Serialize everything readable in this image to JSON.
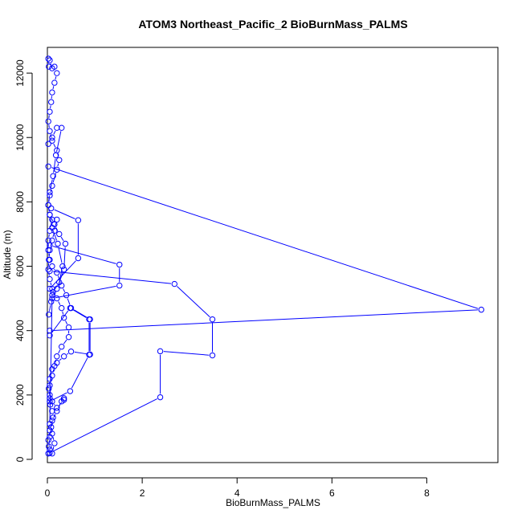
{
  "chart_data": {
    "type": "line",
    "title": "ATOM3 Northeast_Pacific_2 BioBurnMass_PALMS",
    "xlabel": "BioBurnMass_PALMS",
    "ylabel": "Altitude (m)",
    "xlim": [
      0,
      9.5
    ],
    "ylim": [
      -100,
      12800
    ],
    "xticks": [
      0,
      2,
      4,
      6,
      8
    ],
    "yticks": [
      0,
      2000,
      4000,
      6000,
      8000,
      10000,
      12000
    ],
    "grid": false,
    "legend": "none",
    "color": "#0000ff",
    "series": [
      {
        "x": [
          0.02,
          0.03,
          0.05,
          0.08,
          0.12,
          0.1,
          0.06,
          0.05,
          0.03,
          0.05,
          0.1,
          0.2,
          0.35,
          0.5,
          0.9,
          0.9,
          0.5,
          0.4,
          0.3,
          0.2,
          0.1,
          0.05,
          0.02,
          0.02,
          0.05,
          0.1,
          0.2,
          0.15,
          0.1,
          0.05,
          0.03,
          0.02,
          0.05,
          0.1,
          0.2,
          0.3,
          0.35,
          0.45,
          0.45,
          0.3,
          0.2,
          0.15,
          0.1,
          0.05,
          0.05,
          0.1,
          0.2,
          0.35,
          0.35,
          0.3,
          0.2,
          0.1,
          0.05,
          0.02,
          0.05,
          0.1,
          0.15,
          0.1,
          0.05,
          0.1,
          0.2,
          0.35,
          0.38,
          0.25,
          0.15,
          0.05,
          0.02,
          0.05,
          0.1,
          0.2,
          0.25,
          0.2,
          0.1,
          0.05,
          0.02,
          0.05,
          0.08,
          0.1,
          0.15,
          0.2,
          0.15,
          0.1,
          0.05,
          0.02,
          0.03
        ],
        "y": [
          180,
          400,
          700,
          1000,
          1300,
          1500,
          1700,
          1900,
          2200,
          2500,
          2800,
          3000,
          3200,
          3350,
          3260,
          4350,
          4700,
          5100,
          5400,
          5800,
          6000,
          6200,
          6500,
          6800,
          7100,
          7450,
          7450,
          7100,
          6800,
          6500,
          6200,
          5900,
          5600,
          5300,
          5000,
          4700,
          4400,
          4100,
          3800,
          3500,
          3200,
          2900,
          2600,
          2300,
          2000,
          1800,
          1600,
          1850,
          1900,
          1800,
          1500,
          1200,
          900,
          600,
          300,
          180,
          500,
          800,
          1100,
          5100,
          5300,
          5900,
          6700,
          7000,
          7300,
          7600,
          7900,
          8200,
          8500,
          9000,
          9300,
          9600,
          9900,
          10200,
          10500,
          10800,
          11100,
          11400,
          11700,
          12000,
          12200,
          12150,
          12400,
          12450,
          12200
        ]
      },
      {
        "x": [
          0.02,
          9.15,
          0.05
        ],
        "y": [
          9100,
          4650,
          4000
        ]
      },
      {
        "x": [
          0.08,
          0.65,
          0.65,
          0.05
        ],
        "y": [
          7800,
          7430,
          6250,
          5300
        ]
      },
      {
        "x": [
          0.05,
          1.52,
          1.52,
          0.1
        ],
        "y": [
          6650,
          6050,
          5400,
          5000
        ]
      },
      {
        "x": [
          0.05,
          2.68,
          3.48,
          3.48,
          2.38,
          2.38,
          0.05
        ],
        "y": [
          5850,
          5450,
          4350,
          3230,
          3360,
          1930,
          200
        ]
      },
      {
        "x": [
          0.05,
          0.48,
          0.88,
          0.88,
          0.48,
          0.05
        ],
        "y": [
          3850,
          4700,
          4350,
          3250,
          2120,
          1800
        ]
      },
      {
        "x": [
          0.02,
          0.1,
          0.2,
          0.3,
          0.18,
          0.12,
          0.05,
          0.02,
          0.05,
          0.1,
          0.22,
          0.32,
          0.25,
          0.12,
          0.08,
          0.03
        ],
        "y": [
          9800,
          10000,
          10300,
          10300,
          9450,
          8800,
          8300,
          7900,
          7600,
          7200,
          6700,
          6000,
          5500,
          5200,
          4900,
          4500
        ]
      }
    ]
  }
}
